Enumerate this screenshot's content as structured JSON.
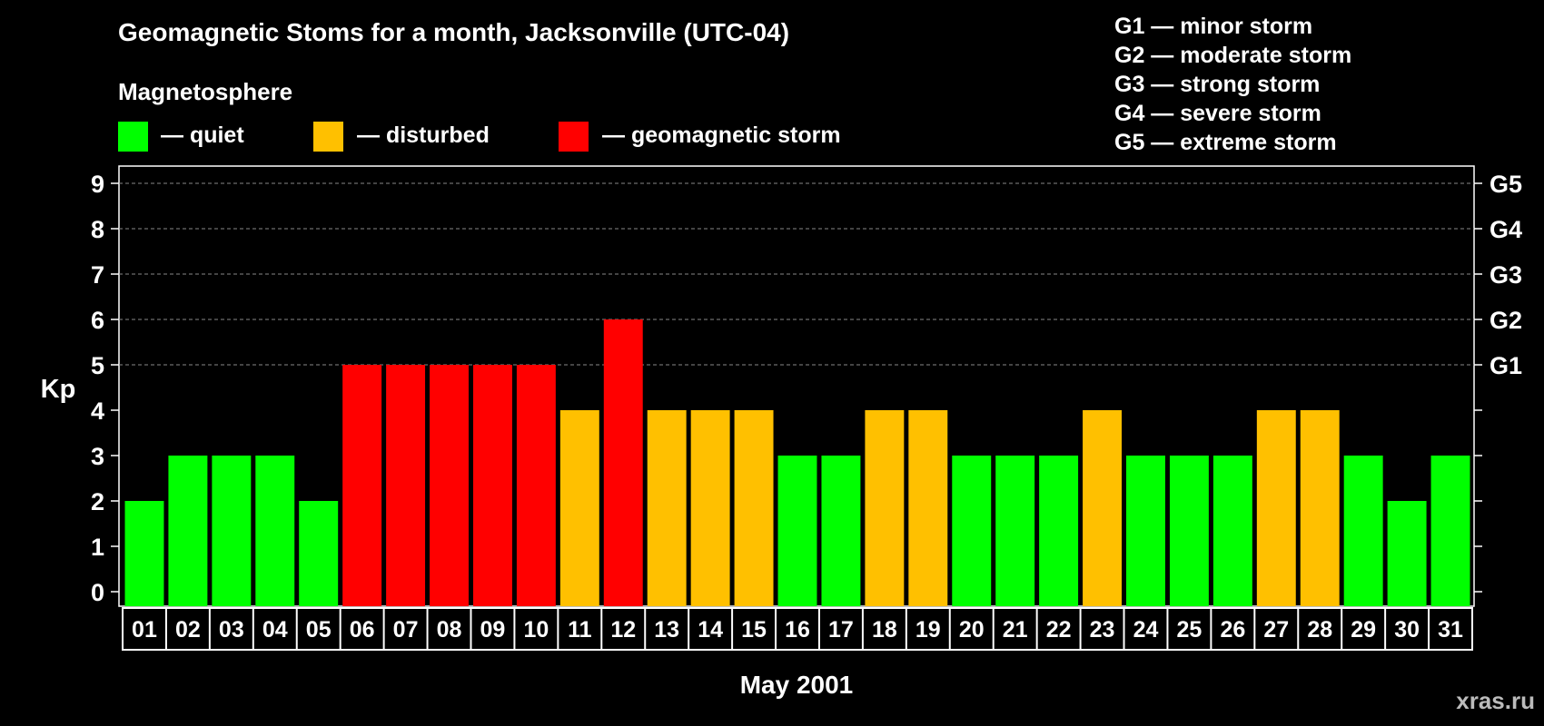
{
  "title": "Geomagnetic Stoms for a month, Jacksonville (UTC-04)",
  "magnetosphere": {
    "title": "Magnetosphere",
    "items": [
      {
        "color": "#00ff00",
        "label": "— quiet"
      },
      {
        "color": "#ffc000",
        "label": "— disturbed"
      },
      {
        "color": "#ff0000",
        "label": "— geomagnetic storm"
      }
    ]
  },
  "g_legend": [
    "G1 — minor storm",
    "G2 — moderate storm",
    "G3 — strong storm",
    "G4 — severe storm",
    "G5 — extreme storm"
  ],
  "watermark": "xras.ru",
  "chart_data": {
    "type": "bar",
    "title": "Geomagnetic Stoms for a month, Jacksonville (UTC-04)",
    "xlabel": "May 2001",
    "ylabel": "Kp",
    "ylim": [
      0,
      9
    ],
    "yticks": [
      0,
      1,
      2,
      3,
      4,
      5,
      6,
      7,
      8,
      9
    ],
    "right_axis_labels": [
      {
        "value": 5,
        "label": "G1"
      },
      {
        "value": 6,
        "label": "G2"
      },
      {
        "value": 7,
        "label": "G3"
      },
      {
        "value": 8,
        "label": "G4"
      },
      {
        "value": 9,
        "label": "G5"
      }
    ],
    "dashed_gridlines_at": [
      5,
      6,
      7,
      8,
      9
    ],
    "categories": [
      "01",
      "02",
      "03",
      "04",
      "05",
      "06",
      "07",
      "08",
      "09",
      "10",
      "11",
      "12",
      "13",
      "14",
      "15",
      "16",
      "17",
      "18",
      "19",
      "20",
      "21",
      "22",
      "23",
      "24",
      "25",
      "26",
      "27",
      "28",
      "29",
      "30",
      "31"
    ],
    "values": [
      2,
      3,
      3,
      3,
      2,
      5,
      5,
      5,
      5,
      5,
      4,
      6,
      4,
      4,
      4,
      3,
      3,
      4,
      4,
      3,
      3,
      3,
      4,
      3,
      3,
      3,
      4,
      4,
      3,
      2,
      3
    ],
    "color_rule": {
      "quiet_max": 3,
      "disturbed": 4,
      "storm_min": 5
    },
    "colors": {
      "quiet": "#00ff00",
      "disturbed": "#ffc000",
      "storm": "#ff0000"
    }
  }
}
